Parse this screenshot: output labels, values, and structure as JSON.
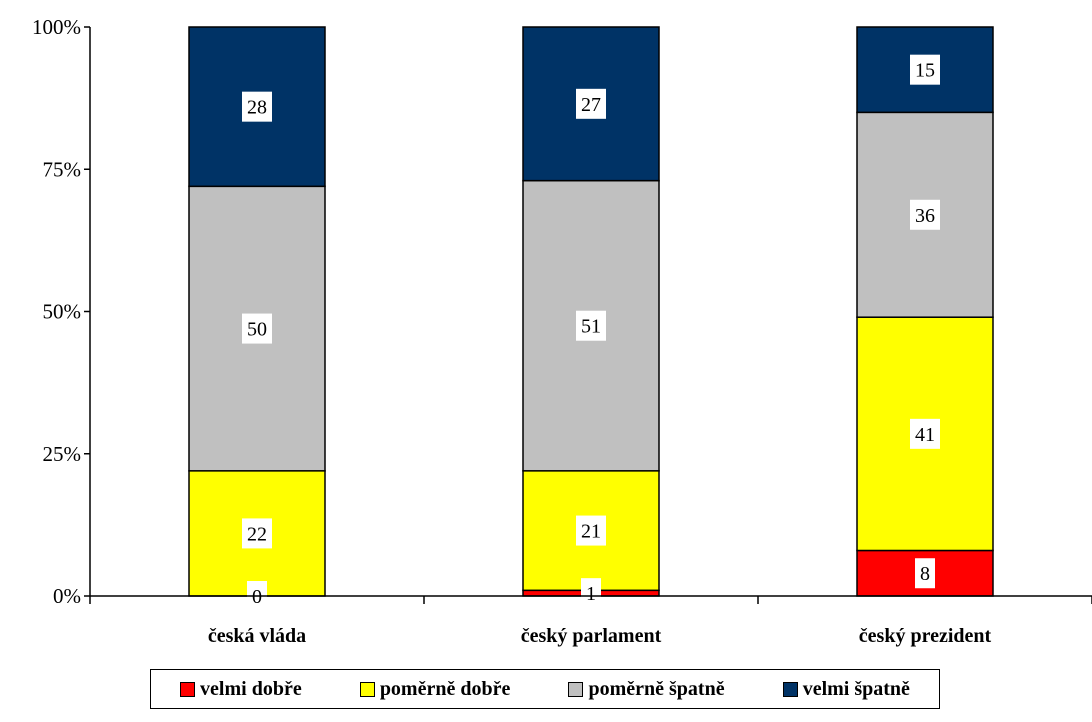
{
  "chart_data": {
    "type": "bar",
    "stacked": true,
    "percent_stacked": true,
    "categories": [
      "česká vláda",
      "český parlament",
      "český prezident"
    ],
    "series": [
      {
        "name": "velmi dobře",
        "values": [
          0,
          1,
          8
        ],
        "color": "#ff0000"
      },
      {
        "name": "poměrně dobře",
        "values": [
          22,
          21,
          41
        ],
        "color": "#ffff00"
      },
      {
        "name": "poměrně špatně",
        "values": [
          50,
          51,
          36
        ],
        "color": "#c0c0c0"
      },
      {
        "name": "velmi špatně",
        "values": [
          28,
          27,
          15
        ],
        "color": "#003366"
      }
    ],
    "y_ticks": [
      "0%",
      "25%",
      "50%",
      "75%",
      "100%"
    ],
    "ylim": [
      0,
      100
    ],
    "grid": false,
    "legend_position": "bottom"
  }
}
